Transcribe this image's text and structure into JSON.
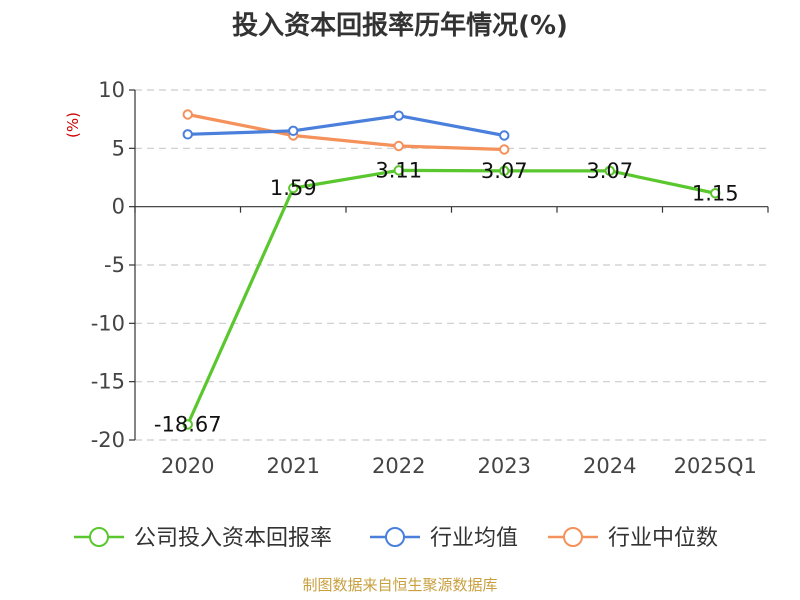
{
  "chart_data": {
    "type": "line",
    "title": "投入资本回报率历年情况(%)",
    "ylabel": "(%)",
    "categories": [
      "2020",
      "2021",
      "2022",
      "2023",
      "2024",
      "2025Q1"
    ],
    "ylim": [
      -20,
      10
    ],
    "yticks": [
      10,
      5,
      0,
      -5,
      -10,
      -15,
      -20
    ],
    "grid": true,
    "legend_position": "bottom",
    "series": [
      {
        "name": "公司投入资本回报率",
        "color": "#5ac72e",
        "values": [
          -18.67,
          1.59,
          3.11,
          3.07,
          3.07,
          1.15
        ],
        "labels": [
          "-18.67",
          "1.59",
          "3.11",
          "3.07",
          "3.07",
          "1.15"
        ]
      },
      {
        "name": "行业均值",
        "color": "#4a7fdc",
        "values": [
          6.2,
          6.5,
          7.8,
          6.1,
          null,
          null
        ]
      },
      {
        "name": "行业中位数",
        "color": "#f5915a",
        "values": [
          7.9,
          6.1,
          5.2,
          4.9,
          null,
          null
        ]
      }
    ]
  },
  "colors": {
    "ylabel": "#cc0000",
    "source": "#c8a040",
    "axis": "#333333",
    "grid": "#cccccc"
  },
  "source": "制图数据来自恒生聚源数据库"
}
